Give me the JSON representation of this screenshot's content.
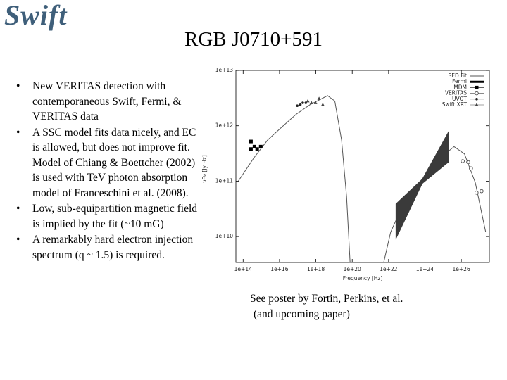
{
  "logo": "Swift",
  "title": "RGB J0710+591",
  "bullets": [
    "New VERITAS detection with contemporaneous Swift, Fermi, & VERITAS data",
    "A SSC model fits data nicely, and EC is allowed, but does not improve fit.  Model of Chiang & Boettcher (2002) is used with TeV photon absorption model of Franceschini et al. (2008).",
    "Low, sub-equipartition magnetic field is implied by the fit (~10 mG)",
    "A remarkably hard electron injection spectrum (q ~ 1.5) is required."
  ],
  "chart_data": {
    "type": "line",
    "x_label": "Frequency [Hz]",
    "y_label": "νFν [Jy Hz]",
    "xscale": "log",
    "yscale": "log",
    "xlim": [
      40000000000000.0,
      3.5e+27
    ],
    "ylim": [
      3400000000.0,
      10000000000000.0
    ],
    "xticks": [
      {
        "value": 100000000000000.0,
        "label": "1e+14"
      },
      {
        "value": 1e+16,
        "label": "1e+16"
      },
      {
        "value": 1e+18,
        "label": "1e+18"
      },
      {
        "value": 1e+20,
        "label": "1e+20"
      },
      {
        "value": 1e+22,
        "label": "1e+22"
      },
      {
        "value": 1e+24,
        "label": "1e+24"
      },
      {
        "value": 1e+26,
        "label": "1e+26"
      }
    ],
    "yticks": [
      {
        "value": 10000000000.0,
        "label": "1e+10"
      },
      {
        "value": 100000000000.0,
        "label": "1e+11"
      },
      {
        "value": 1000000000000.0,
        "label": "1e+12"
      },
      {
        "value": 10000000000000.0,
        "label": "1e+13"
      }
    ],
    "legend": "upper right",
    "series": [
      {
        "name": "SED Fit",
        "color": "#555555",
        "style": "line",
        "x": [
          54000000000000.0,
          380000000000000.0,
          2200000000000000.0,
          1.3e+16,
          8e+16,
          4.7e+17,
          4.4e+18,
          1.1e+19,
          2.6e+19,
          4.9e+19,
          7.6e+19,
          2e+21,
          5.5e+21,
          1.3e+22,
          7.9e+22,
          7.2e+23,
          6.8e+24,
          4e+25,
          1.5e+26,
          5.9e+26,
          2.2e+27
        ],
        "values": [
          100000000000.0,
          260000000000.0,
          550000000000.0,
          940000000000.0,
          1600000000000.0,
          2400000000000.0,
          3500000000000.0,
          2800000000000.0,
          550000000000.0,
          52000000000.0,
          3500000000.0,
          null,
          3500000000.0,
          12000000000.0,
          45000000000.0,
          110000000000.0,
          260000000000.0,
          420000000000.0,
          310000000000.0,
          94000000000.0,
          12000000000.0
        ]
      },
      {
        "name": "Fermi",
        "color": "#3a3a3a",
        "style": "band",
        "x": [
          2.5e+22,
          7.2e+23,
          2e+25
        ],
        "values": [
          39000000000.0,
          110000000000.0,
          790000000000.0
        ],
        "values_low": [
          8900000000.0,
          90000000000.0,
          220000000000.0
        ]
      },
      {
        "name": "MDM",
        "color": "#000000",
        "style": "square",
        "x": [
          270000000000000.0,
          270000000000000.0,
          420000000000000.0,
          590000000000000.0,
          930000000000000.0
        ],
        "values": [
          520000000000.0,
          380000000000.0,
          420000000000.0,
          380000000000.0,
          420000000000.0
        ]
      },
      {
        "name": "VERITAS",
        "color": "#444444",
        "style": "open-circle",
        "x": [
          1.2e+26,
          2.4e+26,
          3.4e+26,
          6.9e+26,
          1.3e+27
        ],
        "values": [
          230000000000.0,
          220000000000.0,
          170000000000.0,
          62000000000.0,
          66000000000.0
        ]
      },
      {
        "name": "UVOT",
        "color": "#222222",
        "style": "circle",
        "x": [
          9.5e+16,
          1.4e+17,
          1.9e+17,
          2.8e+17
        ],
        "values": [
          2300000000000.0,
          2400000000000.0,
          2600000000000.0,
          2600000000000.0
        ]
      },
      {
        "name": "Swift XRT",
        "color": "#444444",
        "style": "triangle",
        "x": [
          3.6e+17,
          5.7e+17,
          9.6e+17,
          1.5e+18,
          2.4e+18
        ],
        "values": [
          2800000000000.0,
          2600000000000.0,
          2600000000000.0,
          3100000000000.0,
          2400000000000.0
        ]
      }
    ]
  },
  "caption": [
    "See poster by Fortin, Perkins, et al.",
    "(and upcoming paper)"
  ]
}
